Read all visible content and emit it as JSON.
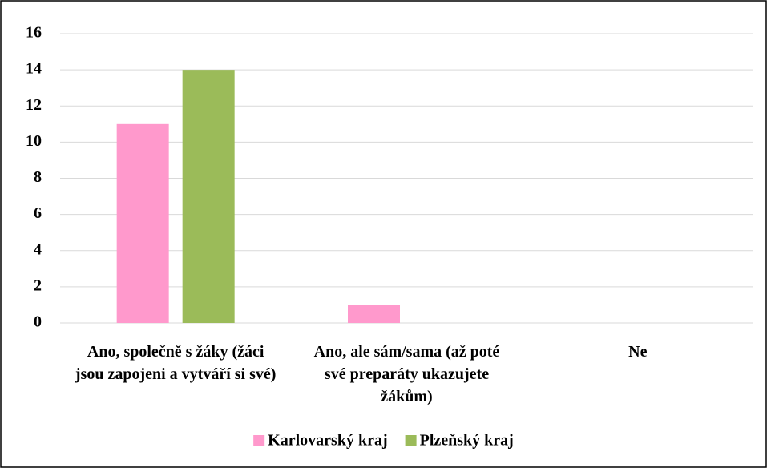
{
  "chart_data": {
    "type": "bar",
    "categories": [
      "Ano, společně s žáky (žáci jsou zapojeni a vytváří si své)",
      "Ano, ale sám/sama (až poté své preparáty ukazujete žákům)",
      "Ne"
    ],
    "series": [
      {
        "name": "Karlovarský kraj",
        "color": "#ff99cc",
        "values": [
          11,
          1,
          0
        ]
      },
      {
        "name": "Plzeňský kraj",
        "color": "#9bbb59",
        "values": [
          14,
          0,
          0
        ]
      }
    ],
    "ylim": [
      0,
      16
    ],
    "yticks": [
      0,
      2,
      4,
      6,
      8,
      10,
      12,
      14,
      16
    ],
    "grid": true,
    "legend": "bottom"
  }
}
